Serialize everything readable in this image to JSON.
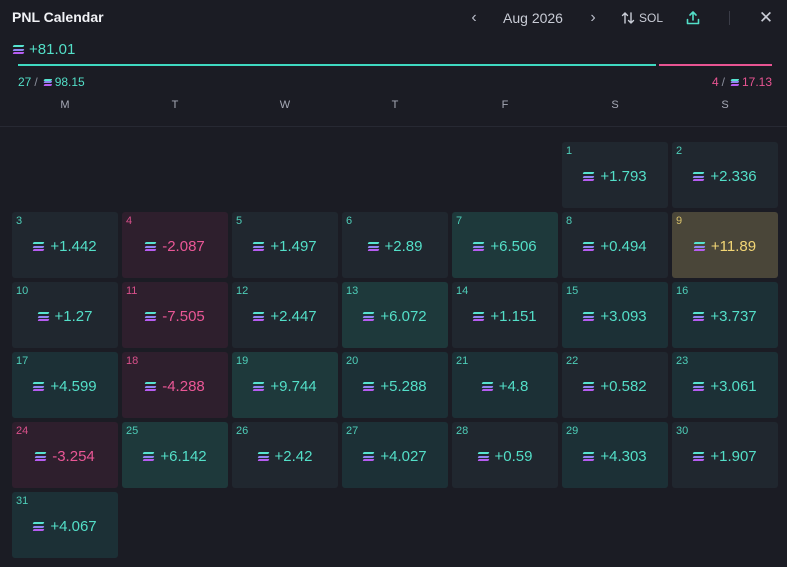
{
  "header": {
    "title": "PNL Calendar",
    "month": "Aug 2026",
    "prev_icon": "chevron-left-icon",
    "next_icon": "chevron-right-icon",
    "sort_label": "SOL",
    "share_icon": "share-icon",
    "close_icon": "close-icon"
  },
  "summary": {
    "total": "+81.01",
    "wins": {
      "count": "27",
      "amount": "98.15"
    },
    "losses": {
      "count": "4",
      "amount": "17.13"
    },
    "win_fraction": 0.85
  },
  "weekdays": [
    "M",
    "T",
    "W",
    "T",
    "F",
    "S",
    "S"
  ],
  "days": [
    {
      "day": "1",
      "value": "+1.793",
      "tone": "neutral"
    },
    {
      "day": "2",
      "value": "+2.336",
      "tone": "neutral"
    },
    {
      "day": "3",
      "value": "+1.442",
      "tone": "neutral"
    },
    {
      "day": "4",
      "value": "-2.087",
      "tone": "neg"
    },
    {
      "day": "5",
      "value": "+1.497",
      "tone": "neutral"
    },
    {
      "day": "6",
      "value": "+2.89",
      "tone": "neutral"
    },
    {
      "day": "7",
      "value": "+6.506",
      "tone": "high"
    },
    {
      "day": "8",
      "value": "+0.494",
      "tone": "neutral"
    },
    {
      "day": "9",
      "value": "+11.89",
      "tone": "best"
    },
    {
      "day": "10",
      "value": "+1.27",
      "tone": "neutral"
    },
    {
      "day": "11",
      "value": "-7.505",
      "tone": "neg"
    },
    {
      "day": "12",
      "value": "+2.447",
      "tone": "neutral"
    },
    {
      "day": "13",
      "value": "+6.072",
      "tone": "high"
    },
    {
      "day": "14",
      "value": "+1.151",
      "tone": "neutral"
    },
    {
      "day": "15",
      "value": "+3.093",
      "tone": "pos"
    },
    {
      "day": "16",
      "value": "+3.737",
      "tone": "pos"
    },
    {
      "day": "17",
      "value": "+4.599",
      "tone": "pos"
    },
    {
      "day": "18",
      "value": "-4.288",
      "tone": "neg"
    },
    {
      "day": "19",
      "value": "+9.744",
      "tone": "high"
    },
    {
      "day": "20",
      "value": "+5.288",
      "tone": "pos"
    },
    {
      "day": "21",
      "value": "+4.8",
      "tone": "pos"
    },
    {
      "day": "22",
      "value": "+0.582",
      "tone": "neutral"
    },
    {
      "day": "23",
      "value": "+3.061",
      "tone": "pos"
    },
    {
      "day": "24",
      "value": "-3.254",
      "tone": "neg"
    },
    {
      "day": "25",
      "value": "+6.142",
      "tone": "high"
    },
    {
      "day": "26",
      "value": "+2.42",
      "tone": "neutral"
    },
    {
      "day": "27",
      "value": "+4.027",
      "tone": "pos"
    },
    {
      "day": "28",
      "value": "+0.59",
      "tone": "neutral"
    },
    {
      "day": "29",
      "value": "+4.303",
      "tone": "pos"
    },
    {
      "day": "30",
      "value": "+1.907",
      "tone": "neutral"
    },
    {
      "day": "31",
      "value": "+4.067",
      "tone": "pos"
    }
  ],
  "first_weekday_index": 5,
  "colors": {
    "positive": "#53dfc8",
    "negative": "#ea5796",
    "best": "#f2d675",
    "background": "#1b1c24"
  }
}
